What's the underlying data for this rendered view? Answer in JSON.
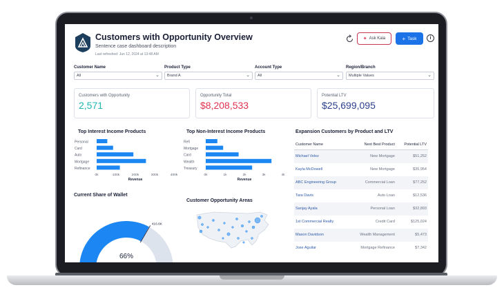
{
  "header": {
    "title": "Customers with Opportunity Overview",
    "subtitle": "Sentence case dashboard description",
    "last_refreshed": "Last refreshed: Jun 12, 2024 at 13:48 AM",
    "ask_label": "Ask Kaia",
    "task_label": "Task",
    "info_label": "i"
  },
  "filters": [
    {
      "label": "Customer Name",
      "value": "All"
    },
    {
      "label": "Product Type",
      "value": "Brand A"
    },
    {
      "label": "Account Type",
      "value": "All"
    },
    {
      "label": "Region/Branch",
      "value": "Multiple Values"
    }
  ],
  "kpis": [
    {
      "label": "Customers with Opportunity",
      "value": "2,571",
      "color": "#1db6b0"
    },
    {
      "label": "Opportunity Total",
      "value": "$8,208,533",
      "color": "#e0314f"
    },
    {
      "label": "Potential LTV",
      "value": "$25,699,095",
      "color": "#2b3f8c"
    }
  ],
  "sections": {
    "interest": "Top Interest Income Products",
    "non_interest": "Top Non-Interest Income Products",
    "wallet": "Current Share of Wallet",
    "areas": "Customer Opportunity Areas",
    "expansion": "Expansion Customers by Product and LTV"
  },
  "chart_data": [
    {
      "type": "bar",
      "title": "Top Interest Income Products",
      "orientation": "horizontal",
      "categories": [
        "Personal",
        "Card",
        "Auto",
        "Mortgage",
        "Refinance"
      ],
      "values": [
        55000,
        85000,
        190000,
        255000,
        120000
      ],
      "xlabel": "Revenue",
      "xticks": [
        "0k",
        "100k",
        "200k",
        "300k",
        "400k"
      ],
      "xlim": [
        0,
        400000
      ],
      "color": "#1c86f2"
    },
    {
      "type": "bar",
      "title": "Top Non-Interest Income Products",
      "orientation": "horizontal",
      "categories": [
        "Refi",
        "Mortgage",
        "Card",
        "Wealth",
        "Treasury"
      ],
      "values": [
        600,
        900,
        1700,
        3400,
        2400
      ],
      "xlabel": "Revenue",
      "xticks": [
        "0k",
        "1k",
        "2k",
        "3k",
        "4k"
      ],
      "xlim": [
        0,
        4000
      ],
      "color": "#1c86f2"
    },
    {
      "type": "gauge",
      "title": "Current Share of Wallet",
      "value_pct": 66,
      "label": "66%",
      "marker_label": "416.6K",
      "fill_color": "#1c86f2",
      "track_color": "#dde3ec"
    }
  ],
  "table": {
    "columns": [
      "Customer Name",
      "Next Best Product",
      "Potential LTV"
    ],
    "rows": [
      [
        "Michael Velez",
        "New Mortgage",
        "$51,252"
      ],
      [
        "Kayla McDowell",
        "New Mortgage",
        "$35,954"
      ],
      [
        "ABC Engineering Group",
        "Commercial Loan",
        "$77,252"
      ],
      [
        "Tara Davis",
        "Auto Loan",
        "$12,536"
      ],
      [
        "Sanjay Ayala",
        "Personal Loan",
        "$32,893"
      ],
      [
        "1st Commercial Realty",
        "Credit Card",
        "$125,024"
      ],
      [
        "Mason Davidson",
        "Wealth Management",
        "$5,473"
      ],
      [
        "Jose Aguilar",
        "Mortgage Refinance",
        "$7,342"
      ]
    ]
  }
}
